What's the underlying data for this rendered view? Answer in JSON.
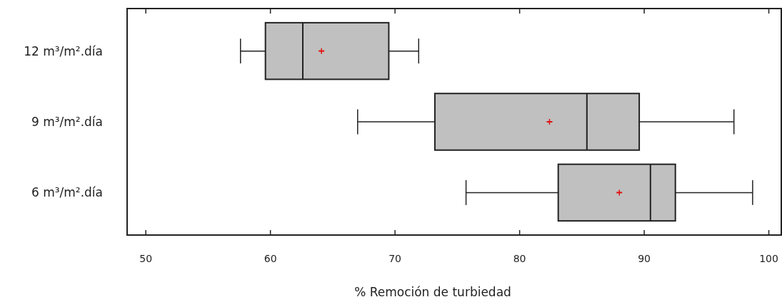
{
  "chart_data": {
    "type": "box",
    "orientation": "horizontal",
    "xlabel": "% Remoción de turbiedad",
    "categories": [
      "12 m³/m².día",
      "9 m³/m².día",
      "6 m³/m².día"
    ],
    "color": "#c0c0c0",
    "xlim": [
      48.5,
      101
    ],
    "xticks": [
      50,
      60,
      70,
      80,
      90,
      100
    ],
    "grid": false,
    "boxes": [
      {
        "low": 57.6,
        "q1": 59.6,
        "median": 62.6,
        "q3": 69.5,
        "high": 71.9,
        "mean": 64.1
      },
      {
        "low": 67.0,
        "q1": 73.2,
        "median": 85.4,
        "q3": 89.6,
        "high": 97.2,
        "mean": 82.4
      },
      {
        "low": 75.7,
        "q1": 83.1,
        "median": 90.5,
        "q3": 92.5,
        "high": 98.7,
        "mean": 88.0
      }
    ]
  }
}
